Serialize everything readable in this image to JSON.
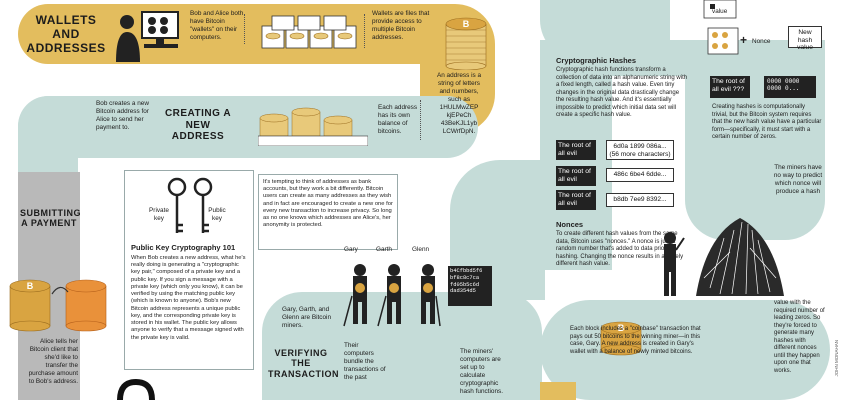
{
  "sections": {
    "wallets_title": "WALLETS AND ADDRESSES",
    "new_address_title": "CREATING A NEW ADDRESS",
    "submitting_title": "SUBMITTING A PAYMENT",
    "verifying_title": "VERIFYING THE TRANSACTION"
  },
  "text": {
    "bob_alice_wallets": "Bob and Alice both have Bitcoin \"wallets\" on their computers.",
    "wallets_files": "Wallets are files that provide access to multiple Bitcoin addresses.",
    "address_string": "An address is a string of letters and numbers, such as 1HULMwZEP kjEPeCh 43BeKJL1yb LCWrfDpN.",
    "each_address": "Each address has its own balance of bitcoins.",
    "bob_creates": "Bob creates a new Bitcoin address for Alice to send her payment to.",
    "tempting": "It's tempting to think of addresses as bank accounts, but they work a bit differently. Bitcoin users can create as many addresses as they wish and in fact are encouraged to create a new one for every new transaction to increase privacy. So long as no one knows which addresses are Alice's, her anonymity is protected.",
    "private_key": "Private key",
    "public_key": "Public key",
    "pkc_title": "Public Key Cryptography 101",
    "pkc_body": "When Bob creates a new address, what he's really doing is generating a \"cryptographic key pair,\" composed of a private key and a public key. If you sign a message with a private key (which only you know), it can be verified by using the matching public key (which is known to anyone). Bob's new Bitcoin address represents a unique public key, and the corresponding private key is stored in his wallet. The public key allows anyone to verify that a message signed with the private key is valid.",
    "alice_tells": "Alice tells her Bitcoin client that she'd like to transfer the purchase amount to Bob's address.",
    "miners_names": "Gary, Garth, and Glenn are Bitcoin miners.",
    "their_computers": "Their computers bundle the transactions of the past",
    "miners_computers": "The miners' computers are set up to calculate cryptographic hash functions.",
    "crypto_title": "Cryptographic Hashes",
    "crypto_body": "Cryptographic hash functions transform a collection of data into an alphanumeric string with a fixed length, called a hash value. Even tiny changes in the original data drastically change the resulting hash value. And it's essentially impossible to predict which initial data set will create a specific hash value.",
    "nonces_title": "Nonces",
    "nonces_body": "To create different hash values from the same data, Bitcoin uses \"nonces.\" A nonce is just a random number that's added to data prior to hashing. Changing the nonce results in a widely different hash value.",
    "creating_hashes": "Creating hashes is computationally trivial, but the Bitcoin system requires that the new hash value have a particular form—specifically, it must start with a certain number of zeros.",
    "miners_no_way": "The miners have no way to predict which nonce will produce a hash",
    "value_required": "value with the required number of leading zeros. So they're forced to generate many hashes with different nonces until they happen upon one that works.",
    "coinbase": "Each block includes a \"coinbase\" transaction that pays out 50 bitcoins to the winning miner—in this case, Gary. A new address is created in Gary's wallet with a balance of newly minted bitcoins.",
    "value_label": "value",
    "nonce_label": "Nonce",
    "new_hash_label": "New hash value",
    "root_question": "The root of all evil ???",
    "zeros_hash": "0000 0000 0000 0...",
    "credit": "JOHN MONAHAN"
  },
  "miner_labels": [
    "Gary",
    "Garth",
    "Glenn"
  ],
  "screen_hash_lines": [
    "b4Cfbbd5f6",
    "bf8c8c7ca",
    "fd05b5c6d",
    "dad354d5"
  ],
  "hash_rows": [
    {
      "input": "The root of all evil",
      "hash": "6d0a 1899 086a... (56 more characters)"
    },
    {
      "input": "The root of all evil",
      "hash": "486c 6be4 6dde..."
    },
    {
      "input": "The root of all evil",
      "hash": "b8db 7ee9 8392..."
    }
  ],
  "colors": {
    "teal": "#c5dcd8",
    "gold": "#e3bd5e",
    "grey": "#b9b9b9",
    "coin": "#d9a441",
    "red_text": "#e04a2a"
  }
}
